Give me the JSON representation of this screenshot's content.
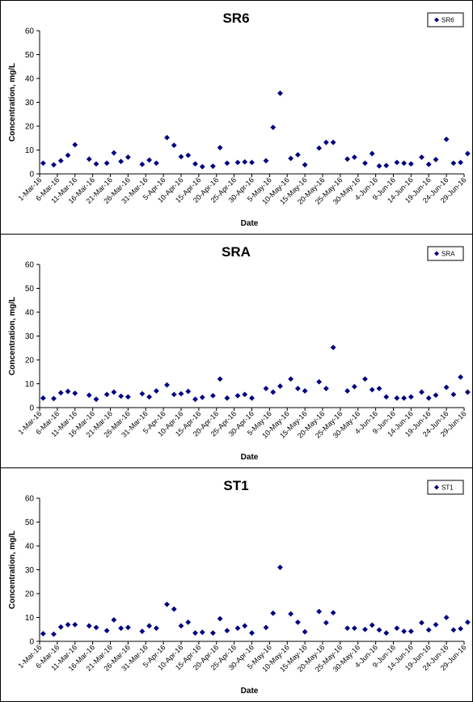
{
  "chart_data": [
    {
      "type": "scatter",
      "title": "SR6",
      "xlabel": "Date",
      "ylabel": "Concentration, mg/L",
      "ylim": [
        0,
        60
      ],
      "yticks": [
        0,
        10,
        20,
        30,
        40,
        50,
        60
      ],
      "xlim": [
        "2016-03-01",
        "2016-06-29"
      ],
      "xtick_labels": [
        "1-Mar-16",
        "6-Mar-16",
        "11-Mar-16",
        "16-Mar-16",
        "21-Mar-16",
        "26-Mar-16",
        "31-Mar-16",
        "5-Apr-16",
        "10-Apr-16",
        "15-Apr-16",
        "20-Apr-16",
        "25-Apr-16",
        "30-Apr-16",
        "5-May-16",
        "10-May-16",
        "15-May-16",
        "20-May-16",
        "25-May-16",
        "30-May-16",
        "4-Jun-16",
        "9-Jun-16",
        "14-Jun-16",
        "19-Jun-16",
        "24-Jun-16",
        "29-Jun-16"
      ],
      "grid": false,
      "legend": "top-right",
      "series": [
        {
          "name": "SR6",
          "color": "#000080",
          "x": [
            "2016-03-02",
            "2016-03-05",
            "2016-03-07",
            "2016-03-09",
            "2016-03-11",
            "2016-03-15",
            "2016-03-17",
            "2016-03-20",
            "2016-03-22",
            "2016-03-24",
            "2016-03-26",
            "2016-03-30",
            "2016-04-01",
            "2016-04-03",
            "2016-04-06",
            "2016-04-08",
            "2016-04-10",
            "2016-04-12",
            "2016-04-14",
            "2016-04-16",
            "2016-04-19",
            "2016-04-21",
            "2016-04-23",
            "2016-04-26",
            "2016-04-28",
            "2016-04-30",
            "2016-05-04",
            "2016-05-06",
            "2016-05-08",
            "2016-05-11",
            "2016-05-13",
            "2016-05-15",
            "2016-05-19",
            "2016-05-21",
            "2016-05-23",
            "2016-05-27",
            "2016-05-29",
            "2016-06-01",
            "2016-06-03",
            "2016-06-05",
            "2016-06-07",
            "2016-06-10",
            "2016-06-12",
            "2016-06-14",
            "2016-06-17",
            "2016-06-19",
            "2016-06-21",
            "2016-06-24",
            "2016-06-26",
            "2016-06-28",
            "2016-06-30"
          ],
          "y": [
            4.5,
            3.8,
            5.5,
            7.8,
            12.2,
            6.2,
            4.2,
            4.5,
            8.8,
            5.2,
            7.0,
            4.0,
            5.8,
            4.5,
            15.2,
            12.0,
            7.2,
            7.8,
            4.2,
            3.0,
            3.2,
            11.0,
            4.5,
            4.8,
            5.0,
            4.8,
            5.5,
            19.5,
            33.8,
            6.5,
            8.0,
            3.8,
            10.8,
            13.2,
            13.2,
            6.2,
            7.0,
            4.5,
            8.5,
            3.3,
            3.5,
            4.8,
            4.5,
            4.2,
            7.0,
            4.0,
            6.0,
            14.5,
            4.5,
            4.8,
            8.5
          ]
        }
      ]
    },
    {
      "type": "scatter",
      "title": "SRA",
      "xlabel": "Date",
      "ylabel": "Concentration, mg/L",
      "ylim": [
        0,
        60
      ],
      "yticks": [
        0,
        10,
        20,
        30,
        40,
        50,
        60
      ],
      "xlim": [
        "2016-03-01",
        "2016-06-29"
      ],
      "xtick_labels": [
        "1-Mar-16",
        "6-Mar-16",
        "11-Mar-16",
        "16-Mar-16",
        "21-Mar-16",
        "26-Mar-16",
        "31-Mar-16",
        "5-Apr-16",
        "10-Apr-16",
        "15-Apr-16",
        "20-Apr-16",
        "25-Apr-16",
        "30-Apr-16",
        "5-May-16",
        "10-May-16",
        "15-May-16",
        "20-May-16",
        "25-May-16",
        "30-May-16",
        "4-Jun-16",
        "9-Jun-16",
        "14-Jun-16",
        "19-Jun-16",
        "24-Jun-16",
        "29-Jun-16"
      ],
      "grid": false,
      "legend": "top-right",
      "series": [
        {
          "name": "SRA",
          "color": "#000080",
          "x": [
            "2016-03-02",
            "2016-03-05",
            "2016-03-07",
            "2016-03-09",
            "2016-03-11",
            "2016-03-15",
            "2016-03-17",
            "2016-03-20",
            "2016-03-22",
            "2016-03-24",
            "2016-03-26",
            "2016-03-30",
            "2016-04-01",
            "2016-04-03",
            "2016-04-06",
            "2016-04-08",
            "2016-04-10",
            "2016-04-12",
            "2016-04-14",
            "2016-04-16",
            "2016-04-19",
            "2016-04-21",
            "2016-04-23",
            "2016-04-26",
            "2016-04-28",
            "2016-04-30",
            "2016-05-04",
            "2016-05-06",
            "2016-05-08",
            "2016-05-11",
            "2016-05-13",
            "2016-05-15",
            "2016-05-19",
            "2016-05-21",
            "2016-05-23",
            "2016-05-27",
            "2016-05-29",
            "2016-06-01",
            "2016-06-03",
            "2016-06-05",
            "2016-06-07",
            "2016-06-10",
            "2016-06-12",
            "2016-06-14",
            "2016-06-17",
            "2016-06-19",
            "2016-06-21",
            "2016-06-24",
            "2016-06-26",
            "2016-06-28",
            "2016-06-30"
          ],
          "y": [
            4.0,
            3.8,
            6.2,
            6.8,
            6.0,
            5.2,
            3.5,
            5.5,
            6.5,
            4.8,
            4.5,
            5.8,
            4.5,
            7.0,
            9.5,
            5.5,
            5.8,
            6.8,
            3.5,
            4.3,
            5.0,
            12.0,
            4.0,
            5.0,
            5.5,
            4.0,
            8.0,
            6.5,
            9.0,
            12.0,
            8.0,
            7.0,
            10.8,
            8.0,
            25.2,
            7.0,
            8.8,
            12.0,
            7.5,
            8.0,
            4.5,
            4.0,
            4.0,
            4.5,
            6.5,
            4.0,
            5.2,
            8.5,
            5.5,
            12.8,
            6.5
          ]
        }
      ]
    },
    {
      "type": "scatter",
      "title": "ST1",
      "xlabel": "Date",
      "ylabel": "Concentration, mg/L",
      "ylim": [
        0,
        60
      ],
      "yticks": [
        0,
        10,
        20,
        30,
        40,
        50,
        60
      ],
      "xlim": [
        "2016-03-01",
        "2016-06-29"
      ],
      "xtick_labels": [
        "1-Mar-16",
        "6-Mar-16",
        "11-Mar-16",
        "16-Mar-16",
        "21-Mar-16",
        "26-Mar-16",
        "31-Mar-16",
        "5-Apr-16",
        "10-Apr-16",
        "15-Apr-16",
        "20-Apr-16",
        "25-Apr-16",
        "30-Apr-16",
        "5-May-16",
        "10-May-16",
        "15-May-16",
        "20-May-16",
        "25-May-16",
        "30-May-16",
        "4-Jun-16",
        "9-Jun-16",
        "14-Jun-16",
        "19-Jun-16",
        "24-Jun-16",
        "29-Jun-16"
      ],
      "grid": false,
      "legend": "top-right",
      "series": [
        {
          "name": "ST1",
          "color": "#000080",
          "x": [
            "2016-03-02",
            "2016-03-05",
            "2016-03-07",
            "2016-03-09",
            "2016-03-11",
            "2016-03-15",
            "2016-03-17",
            "2016-03-20",
            "2016-03-22",
            "2016-03-24",
            "2016-03-26",
            "2016-03-30",
            "2016-04-01",
            "2016-04-03",
            "2016-04-06",
            "2016-04-08",
            "2016-04-10",
            "2016-04-12",
            "2016-04-14",
            "2016-04-16",
            "2016-04-19",
            "2016-04-21",
            "2016-04-23",
            "2016-04-26",
            "2016-04-28",
            "2016-04-30",
            "2016-05-04",
            "2016-05-06",
            "2016-05-08",
            "2016-05-11",
            "2016-05-13",
            "2016-05-15",
            "2016-05-19",
            "2016-05-21",
            "2016-05-23",
            "2016-05-27",
            "2016-05-29",
            "2016-06-01",
            "2016-06-03",
            "2016-06-05",
            "2016-06-07",
            "2016-06-10",
            "2016-06-12",
            "2016-06-14",
            "2016-06-17",
            "2016-06-19",
            "2016-06-21",
            "2016-06-24",
            "2016-06-26",
            "2016-06-28",
            "2016-06-30"
          ],
          "y": [
            3.2,
            3.0,
            6.0,
            7.0,
            7.0,
            6.5,
            5.8,
            4.5,
            9.0,
            5.5,
            5.8,
            4.2,
            6.5,
            5.5,
            15.5,
            13.5,
            6.5,
            8.0,
            3.5,
            3.8,
            3.5,
            9.5,
            4.5,
            5.5,
            6.5,
            3.5,
            5.8,
            11.8,
            31.0,
            11.5,
            8.0,
            4.0,
            12.5,
            7.8,
            12.0,
            5.5,
            5.5,
            5.0,
            6.8,
            4.8,
            3.5,
            5.5,
            4.2,
            4.2,
            7.8,
            4.8,
            7.0,
            10.0,
            4.8,
            5.3,
            8.0
          ]
        }
      ]
    }
  ]
}
